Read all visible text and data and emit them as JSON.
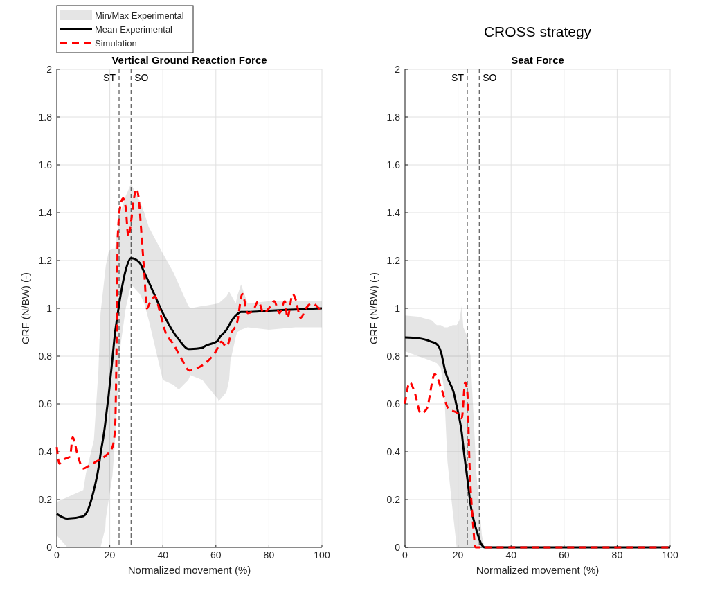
{
  "chart_data": [
    {
      "type": "line",
      "title": "Vertical Ground Reaction Force",
      "xlabel": "Normalized movement (%)",
      "ylabel": "GRF (N/BW) (-)",
      "xlim": [
        0,
        100
      ],
      "xticks": [
        0,
        20,
        40,
        60,
        80,
        100
      ],
      "ylim": [
        0,
        2
      ],
      "yticks": [
        0,
        0.2,
        0.4,
        0.6,
        0.8,
        1,
        1.2,
        1.4,
        1.6,
        1.8,
        2
      ],
      "grid": true,
      "legend": "top left",
      "annotations": [
        "Min/Max Experimental"
      ],
      "series": [
        {
          "name": "Mean Experimental",
          "color": "#000000",
          "x": [
            0,
            4,
            10,
            11,
            14,
            15.7,
            16.5,
            18.3,
            18.5,
            19.6,
            21,
            22,
            22.5,
            24,
            26,
            28,
            31.3,
            33,
            34.7,
            40,
            44,
            46,
            49.6,
            50.4,
            55,
            55.6,
            60.8,
            61,
            64,
            65,
            65.5,
            67.5,
            68,
            69.5,
            72,
            80,
            90,
            100
          ],
          "values": [
            0.14,
            0.12,
            0.13,
            0.14,
            0.24,
            0.33,
            0.39,
            0.52,
            0.54,
            0.64,
            0.79,
            0.9,
            0.94,
            1.05,
            1.16,
            1.21,
            1.19,
            1.15,
            1.11,
            0.98,
            0.9,
            0.87,
            0.83,
            0.83,
            0.835,
            0.84,
            0.865,
            0.87,
            0.91,
            0.93,
            0.94,
            0.97,
            0.975,
            0.985,
            0.985,
            0.99,
            0.995,
            1.0
          ],
          "lower": [
            0.05,
            0,
            0,
            0,
            0,
            0,
            0,
            0.08,
            0.12,
            0.2,
            0.3,
            0.45,
            0.55,
            0.84,
            1.0,
            1.1,
            1.06,
            1.02,
            0.95,
            0.7,
            0.68,
            0.66,
            0.7,
            0.72,
            0.7,
            0.69,
            0.62,
            0.61,
            0.65,
            0.7,
            0.78,
            0.88,
            0.9,
            0.91,
            0.92,
            0.91,
            0.92,
            0.92
          ],
          "upper": [
            0.19,
            0.21,
            0.24,
            0.31,
            0.45,
            0.74,
            0.98,
            1.16,
            1.18,
            1.24,
            1.25,
            1.25,
            1.3,
            1.4,
            1.47,
            1.52,
            1.45,
            1.4,
            1.34,
            1.23,
            1.15,
            1.1,
            1.01,
            1.0,
            1.01,
            1.01,
            1.02,
            1.02,
            1.05,
            1.07,
            1.06,
            1.02,
            1.05,
            1.1,
            1.02,
            1.03,
            1.03,
            1.03
          ]
        },
        {
          "name": "Simulation",
          "color": "#ff0000",
          "line_style": "dashed",
          "x": [
            0,
            1,
            3,
            5,
            6,
            8,
            10,
            12,
            15,
            18,
            21,
            22,
            22.5,
            23,
            24,
            25,
            26,
            27,
            28,
            29,
            30,
            31,
            32,
            33,
            34,
            35,
            37,
            39,
            41,
            44,
            47,
            50,
            53,
            57,
            60,
            62,
            64,
            66,
            68,
            70,
            72,
            74,
            76,
            78,
            80,
            82,
            84,
            86,
            87,
            89,
            90,
            92,
            94,
            96,
            98,
            100
          ],
          "values": [
            0.42,
            0.35,
            0.37,
            0.38,
            0.46,
            0.38,
            0.33,
            0.34,
            0.36,
            0.38,
            0.42,
            0.5,
            0.8,
            1.3,
            1.43,
            1.46,
            1.42,
            1.3,
            1.36,
            1.45,
            1.5,
            1.45,
            1.3,
            1.15,
            1.0,
            1.02,
            1.05,
            0.98,
            0.9,
            0.85,
            0.79,
            0.74,
            0.75,
            0.78,
            0.82,
            0.86,
            0.84,
            0.9,
            0.94,
            1.06,
            0.98,
            0.99,
            1.03,
            0.98,
            1.0,
            1.03,
            0.98,
            1.03,
            0.96,
            1.06,
            1.04,
            0.96,
            1.0,
            1.02,
            1.01,
            0.98
          ]
        }
      ],
      "ref_lines": [
        {
          "axis": "x",
          "value": 23.5,
          "label": "ST",
          "color": "#000000",
          "line_style": "dashed"
        },
        {
          "axis": "x",
          "value": 28,
          "label": "SO",
          "color": "#000000",
          "line_style": "dashed"
        }
      ]
    },
    {
      "type": "line",
      "title": "CROSS strategy",
      "subtitle": "Seat Force",
      "xlabel": "Normalized movement (%)",
      "ylabel": "GRF (N/BW) (-)",
      "xlim": [
        0,
        100
      ],
      "xticks": [
        0,
        20,
        40,
        60,
        80,
        100
      ],
      "ylim": [
        0,
        2
      ],
      "yticks": [
        0,
        0.2,
        0.4,
        0.6,
        0.8,
        1,
        1.2,
        1.4,
        1.6,
        1.8,
        2
      ],
      "grid": true,
      "series": [
        {
          "color": "#000000",
          "x": [
            0,
            5,
            10,
            12,
            13.5,
            14.9,
            15,
            16,
            18,
            18.3,
            19.5,
            20.5,
            21.4,
            22,
            23.6,
            24.7,
            27,
            29,
            30,
            40,
            60,
            80,
            100
          ],
          "values": [
            0.878,
            0.875,
            0.86,
            0.85,
            0.82,
            0.75,
            0.745,
            0.71,
            0.66,
            0.65,
            0.59,
            0.54,
            0.48,
            0.42,
            0.28,
            0.18,
            0.07,
            0.01,
            0,
            0,
            0,
            0,
            0
          ],
          "lower": [
            0.82,
            0.8,
            0.78,
            0.77,
            0.75,
            0.65,
            0.6,
            0.36,
            0.15,
            0.12,
            0,
            0,
            0,
            0,
            0,
            0,
            0,
            0,
            0,
            null,
            null,
            null,
            null
          ],
          "upper": [
            0.97,
            0.965,
            0.95,
            0.93,
            0.93,
            0.92,
            0.92,
            0.92,
            0.93,
            0.93,
            0.93,
            0.95,
            1.01,
            0.92,
            0.88,
            0.8,
            0.3,
            0.05,
            0,
            null,
            null,
            null,
            null
          ]
        },
        {
          "color": "#ff0000",
          "line_style": "dashed",
          "x": [
            0,
            1.8,
            3.6,
            6,
            8.2,
            11.2,
            13.8,
            16.4,
            20,
            21.4,
            22.7,
            23.5,
            24.3,
            25.6,
            26.6,
            40,
            60,
            80,
            100
          ],
          "values": [
            0.6,
            0.69,
            0.65,
            0.56,
            0.58,
            0.725,
            0.66,
            0.58,
            0.56,
            0.54,
            0.69,
            0.65,
            0.36,
            0.107,
            0,
            0,
            0,
            0,
            0
          ]
        }
      ],
      "ref_lines": [
        {
          "axis": "x",
          "value": 23.5,
          "label": "ST",
          "color": "#000000",
          "line_style": "dashed"
        },
        {
          "axis": "x",
          "value": 28,
          "label": "SO",
          "color": "#000000",
          "line_style": "dashed"
        }
      ]
    }
  ]
}
